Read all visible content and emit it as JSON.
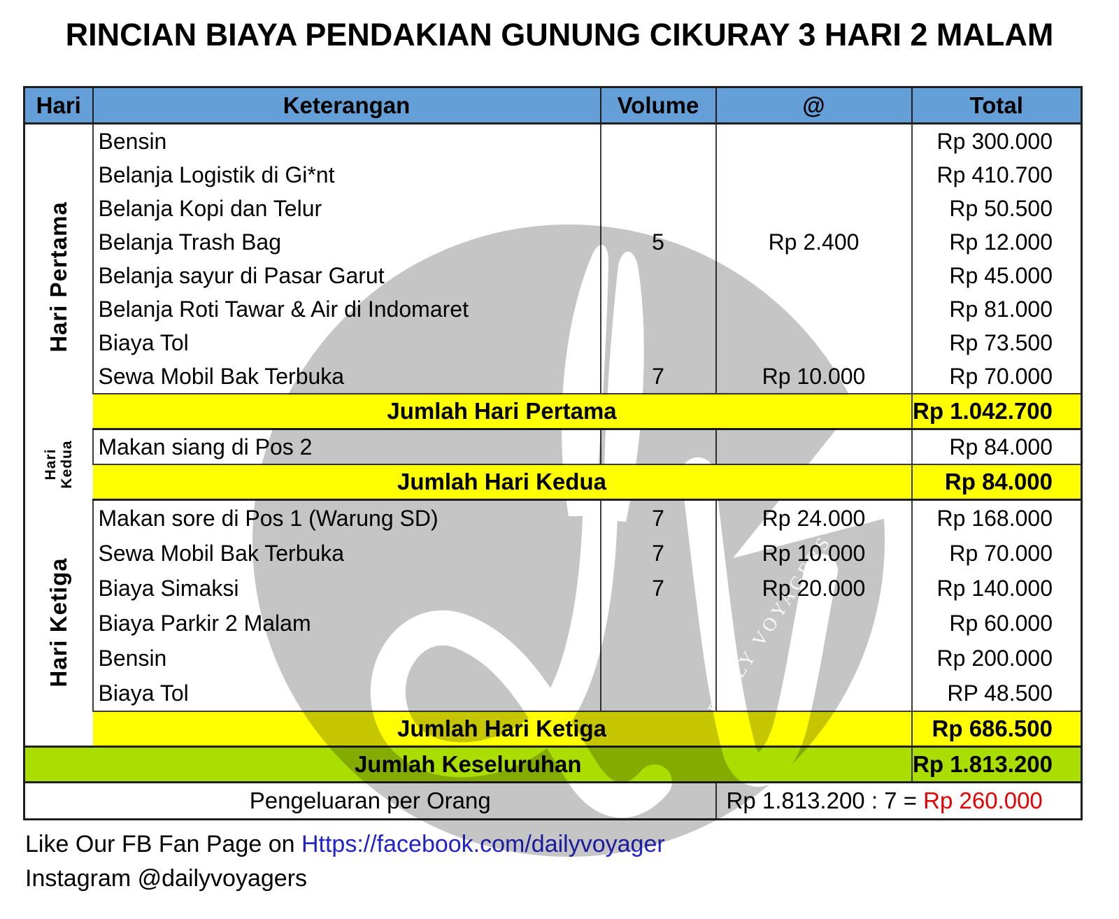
{
  "title": "RINCIAN BIAYA PENDAKIAN GUNUNG CIKURAY 3 HARI 2 MALAM",
  "table": {
    "columns": [
      "Hari",
      "Keterangan",
      "Volume",
      "@",
      "Total"
    ],
    "sections": [
      {
        "day": "Hari Pertama",
        "day_style": "large",
        "items": [
          {
            "keterangan": "Bensin",
            "volume": "",
            "at": "",
            "total": "Rp 300.000"
          },
          {
            "keterangan": "Belanja Logistik di Gi*nt",
            "volume": "",
            "at": "",
            "total": "Rp 410.700"
          },
          {
            "keterangan": "Belanja Kopi dan Telur",
            "volume": "",
            "at": "",
            "total": "Rp 50.500"
          },
          {
            "keterangan": "Belanja Trash Bag",
            "volume": "5",
            "at": "Rp 2.400",
            "total": "Rp 12.000"
          },
          {
            "keterangan": "Belanja sayur di Pasar Garut",
            "volume": "",
            "at": "",
            "total": "Rp 45.000"
          },
          {
            "keterangan": "Belanja Roti Tawar & Air di Indomaret",
            "volume": "",
            "at": "",
            "total": "Rp 81.000"
          },
          {
            "keterangan": "Biaya Tol",
            "volume": "",
            "at": "",
            "total": "Rp 73.500"
          },
          {
            "keterangan": "Sewa Mobil Bak Terbuka",
            "volume": "7",
            "at": "Rp 10.000",
            "total": "Rp 70.000"
          }
        ],
        "summary": {
          "label": "Jumlah Hari Pertama",
          "total": "Rp 1.042.700",
          "over_watermark": true
        }
      },
      {
        "day": "Hari Kedua",
        "day_style": "small",
        "items": [
          {
            "keterangan": "Makan siang di Pos 2",
            "volume": "",
            "at": "",
            "total": "Rp 84.000"
          }
        ],
        "summary": {
          "label": "Jumlah Hari Kedua",
          "total": "Rp 84.000",
          "over_watermark": true
        }
      },
      {
        "day": "Hari Ketiga",
        "day_style": "large",
        "items": [
          {
            "keterangan": "Makan sore di Pos 1 (Warung SD)",
            "volume": "7",
            "at": "Rp 24.000",
            "total": "Rp 168.000"
          },
          {
            "keterangan": "Sewa Mobil Bak Terbuka",
            "volume": "7",
            "at": "Rp 10.000",
            "total": "Rp 70.000"
          },
          {
            "keterangan": "Biaya Simaksi",
            "volume": "7",
            "at": "Rp 20.000",
            "total": "Rp 140.000"
          },
          {
            "keterangan": "Biaya Parkir 2 Malam",
            "volume": "",
            "at": "",
            "total": "Rp 60.000"
          },
          {
            "keterangan": "Bensin",
            "volume": "",
            "at": "",
            "total": "Rp 200.000"
          },
          {
            "keterangan": "Biaya Tol",
            "volume": "",
            "at": "",
            "total": "RP 48.500"
          }
        ],
        "summary": {
          "label": "Jumlah Hari Ketiga",
          "total": "Rp 686.500",
          "over_watermark": false
        }
      }
    ],
    "grand_total": {
      "label": "Jumlah Keseluruhan",
      "total": "Rp 1.813.200"
    },
    "per_person": {
      "label": "Pengeluaran per Orang",
      "calc_black": "Rp 1.813.200 : 7 = ",
      "calc_red": "Rp 260.000"
    }
  },
  "watermark": {
    "initials": "dv",
    "subtitle": "DAILY VOYAGERS"
  },
  "footer": {
    "fb_prefix": "Like Our FB Fan Page on ",
    "fb_link": "Https://facebook.com/dailyvoyager",
    "instagram": "Instagram @dailyvoyagers"
  },
  "colors": {
    "header_blue": "#649fd7",
    "highlight_yellow": "#ffff00",
    "grand_green": "#aadd00",
    "per_person_red": "#e80000",
    "link_blue": "#2222cc",
    "watermark_gray": "#c5c5c5"
  }
}
